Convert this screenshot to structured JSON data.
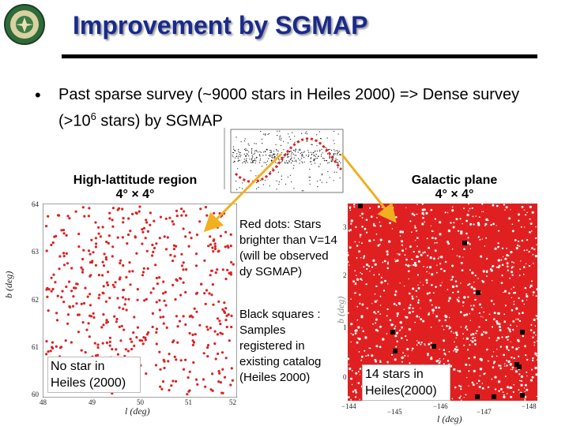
{
  "title": "Improvement by SGMAP",
  "bullet": {
    "prefix": "Past sparse survey (~9000 stars in Heiles 2000) => Dense survey (>10",
    "superscript": "6",
    "suffix": " stars) by SGMAP"
  },
  "panels": {
    "left": {
      "title_line1": "High-lattitude region",
      "title_line2": "4° × 4°",
      "y_ticks": [
        "64",
        "63",
        "62",
        "61",
        "60"
      ],
      "x_ticks": [
        "48",
        "49",
        "50",
        "51",
        "52"
      ],
      "y_label": "b (deg)",
      "x_label": "l (deg)",
      "note": "No star in Heiles (2000)"
    },
    "right": {
      "title_line1": "Galactic plane",
      "title_line2": "4° × 4°",
      "y_ticks": [
        "3",
        "2",
        "1",
        "0"
      ],
      "x_ticks": [
        "−144",
        "−145",
        "−146",
        "−147",
        "−148"
      ],
      "y_label": "b (deg)",
      "x_label": "l (deg)",
      "note": "14 stars in Heiles(2000)"
    }
  },
  "callouts": {
    "red_dots": "Red dots: Stars brighter than V=14 (will be observed dy SGMAP)",
    "black_squares": "Black squares : Samples registered in existing catalog (Heiles 2000)"
  },
  "colors": {
    "title": "#1a2a8c",
    "star_red": "#dd2222",
    "arrow": "#f0b020",
    "catalog_square": "#000000"
  }
}
